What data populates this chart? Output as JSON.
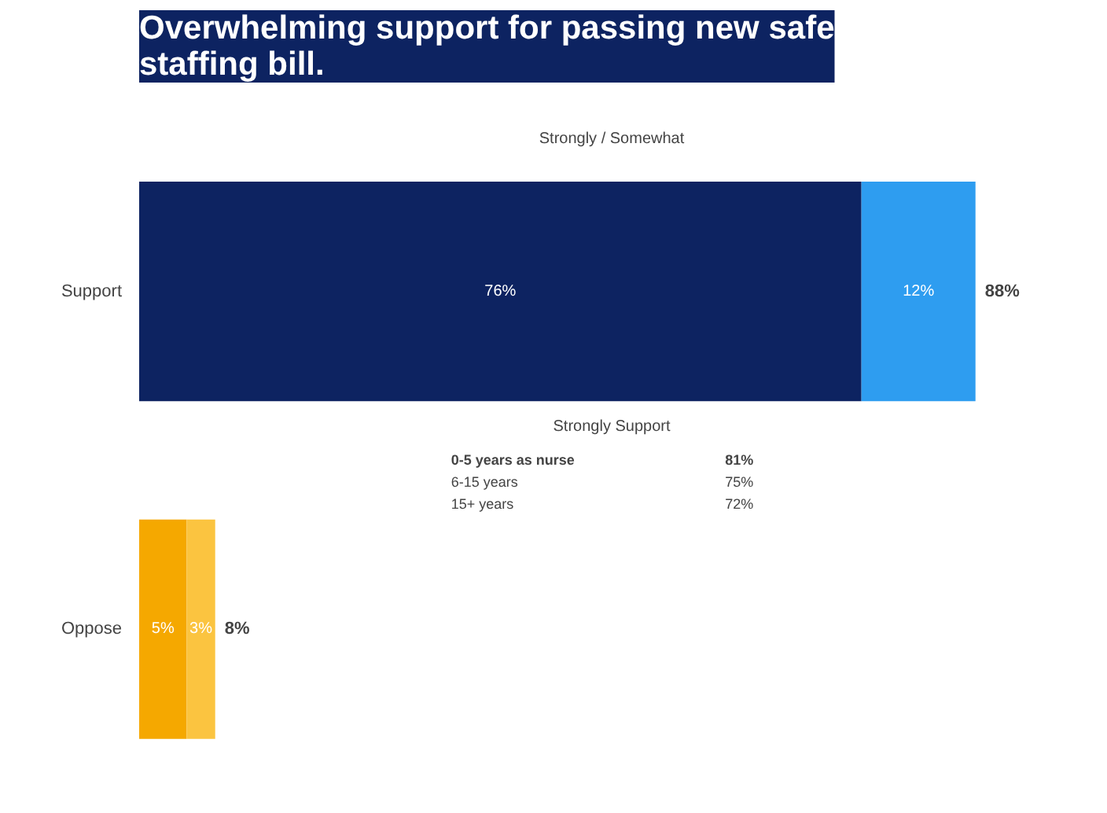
{
  "chart_data": {
    "type": "bar",
    "orientation": "horizontal",
    "stacked": true,
    "title": "Overwhelming support for passing new safe staffing bill.",
    "categories": [
      "Support",
      "Oppose"
    ],
    "series": [
      {
        "colors": [
          "#0d2361",
          "#f5a800"
        ],
        "values": [
          76,
          5
        ],
        "value_labels": [
          "76%",
          "5%"
        ]
      },
      {
        "colors": [
          "#2e9df0",
          "#fbc440"
        ],
        "values": [
          12,
          3
        ],
        "value_labels": [
          "12%",
          "3%"
        ]
      }
    ],
    "totals": [
      "88%",
      "8%"
    ],
    "annotations": [
      "Strongly / Somewhat",
      "Strongly Support",
      "0-5 years as nurse",
      "81%",
      "6-15 years",
      "75%",
      "15+ years",
      "72%"
    ]
  }
}
